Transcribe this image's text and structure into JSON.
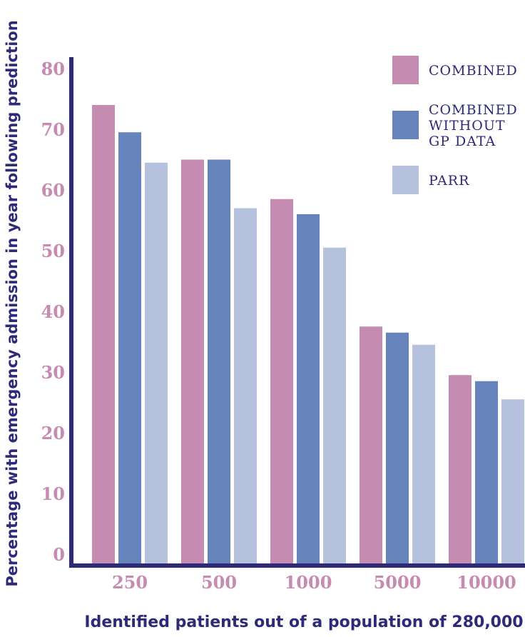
{
  "colors": {
    "axis": "#2e2a78",
    "tick_label": "#c68bb0",
    "axis_title": "#2e2a78",
    "legend_text": "#2e2a78"
  },
  "chart_data": {
    "type": "bar",
    "title": "",
    "xlabel": "Identified patients out of a population of 280,000",
    "ylabel": "Percentage with emergency admission in year following prediction",
    "ylim": [
      0,
      80
    ],
    "yticks": [
      0,
      10,
      20,
      30,
      40,
      50,
      60,
      70,
      80
    ],
    "grid": false,
    "legend_position": "top-right",
    "categories": [
      "250",
      "500",
      "1000",
      "5000",
      "10000"
    ],
    "series": [
      {
        "name": "COMBINED",
        "name_lines": [
          "COMBINED"
        ],
        "color": "#c68bb0",
        "values": [
          74,
          65,
          58.5,
          37.5,
          29.5
        ]
      },
      {
        "name": "COMBINED WITHOUT GP DATA",
        "name_lines": [
          "COMBINED",
          "WITHOUT",
          "GP DATA"
        ],
        "color": "#6683bc",
        "values": [
          69.5,
          65,
          56,
          36.5,
          28.5
        ]
      },
      {
        "name": "PARR",
        "name_lines": [
          "PARR"
        ],
        "color": "#b6c1de",
        "values": [
          64.5,
          57,
          50.5,
          34.5,
          25.5
        ]
      }
    ]
  }
}
